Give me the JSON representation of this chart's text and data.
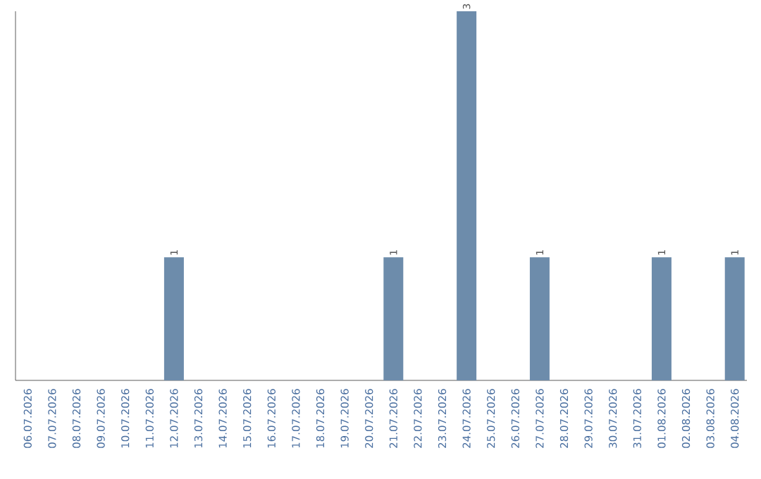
{
  "chart_data": {
    "type": "bar",
    "categories": [
      "06.07.2026",
      "07.07.2026",
      "08.07.2026",
      "09.07.2026",
      "10.07.2026",
      "11.07.2026",
      "12.07.2026",
      "13.07.2026",
      "14.07.2026",
      "15.07.2026",
      "16.07.2026",
      "17.07.2026",
      "18.07.2026",
      "19.07.2026",
      "20.07.2026",
      "21.07.2026",
      "22.07.2026",
      "23.07.2026",
      "24.07.2026",
      "25.07.2026",
      "26.07.2026",
      "27.07.2026",
      "28.07.2026",
      "29.07.2026",
      "30.07.2026",
      "31.07.2026",
      "01.08.2026",
      "02.08.2026",
      "03.08.2026",
      "04.08.2026"
    ],
    "values": [
      0,
      0,
      0,
      0,
      0,
      0,
      1,
      0,
      0,
      0,
      0,
      0,
      0,
      0,
      0,
      1,
      0,
      0,
      3,
      0,
      0,
      1,
      0,
      0,
      0,
      0,
      1,
      0,
      0,
      1
    ],
    "value_labels": [
      null,
      null,
      null,
      null,
      null,
      null,
      "1",
      null,
      null,
      null,
      null,
      null,
      null,
      null,
      null,
      "1",
      null,
      null,
      "3",
      null,
      null,
      "1",
      null,
      null,
      null,
      null,
      "1",
      null,
      null,
      "1"
    ],
    "color": "#6d8cab",
    "tick_labels": "x"
  }
}
